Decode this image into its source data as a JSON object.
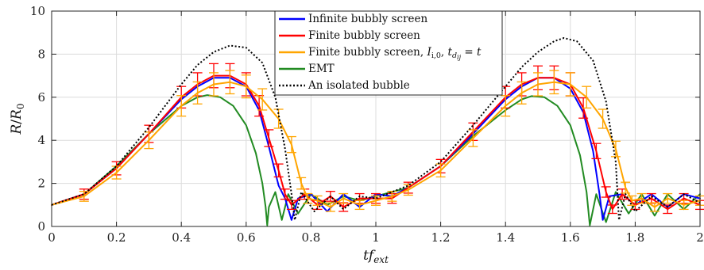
{
  "chart_data": {
    "type": "line",
    "xlabel": "tf_ext",
    "ylabel": "R/R0",
    "xlim": [
      0,
      2
    ],
    "ylim": [
      0,
      10
    ],
    "xticks": [
      0,
      0.2,
      0.4,
      0.6,
      0.8,
      1,
      1.2,
      1.4,
      1.6,
      1.8,
      2
    ],
    "xtick_labels": [
      "0",
      "0.2",
      "0.4",
      "0.6",
      "0.8",
      "1",
      "1.2",
      "1.4",
      "1.6",
      "1.8",
      "2"
    ],
    "yticks": [
      0,
      2,
      4,
      6,
      8,
      10
    ],
    "ytick_labels": [
      "0",
      "2",
      "4",
      "6",
      "8",
      "10"
    ],
    "grid": true,
    "legend_position": "top-center",
    "series": [
      {
        "name": "Infinite bubbly screen",
        "color": "#0000ff",
        "style": "solid",
        "points": [
          [
            0,
            1
          ],
          [
            0.1,
            1.5
          ],
          [
            0.2,
            2.7
          ],
          [
            0.3,
            4.3
          ],
          [
            0.4,
            5.9
          ],
          [
            0.45,
            6.5
          ],
          [
            0.5,
            6.9
          ],
          [
            0.55,
            6.9
          ],
          [
            0.6,
            6.5
          ],
          [
            0.64,
            5.4
          ],
          [
            0.67,
            3.7
          ],
          [
            0.7,
            1.9
          ],
          [
            0.72,
            1.3
          ],
          [
            0.74,
            0.3
          ],
          [
            0.76,
            1.3
          ],
          [
            0.8,
            1.5
          ],
          [
            0.85,
            0.7
          ],
          [
            0.9,
            1.5
          ],
          [
            0.95,
            0.9
          ],
          [
            1.0,
            1.5
          ],
          [
            1.05,
            1.4
          ],
          [
            1.1,
            1.8
          ],
          [
            1.2,
            2.8
          ],
          [
            1.3,
            4.3
          ],
          [
            1.4,
            5.9
          ],
          [
            1.45,
            6.5
          ],
          [
            1.5,
            6.9
          ],
          [
            1.55,
            6.9
          ],
          [
            1.6,
            6.4
          ],
          [
            1.64,
            5.3
          ],
          [
            1.67,
            3.5
          ],
          [
            1.69,
            1.5
          ],
          [
            1.7,
            0.3
          ],
          [
            1.72,
            1.4
          ],
          [
            1.76,
            1.5
          ],
          [
            1.8,
            1.0
          ],
          [
            1.85,
            1.5
          ],
          [
            1.9,
            0.9
          ],
          [
            1.95,
            1.5
          ],
          [
            2.0,
            1.3
          ]
        ]
      },
      {
        "name": "Finite bubbly screen",
        "color": "#ff0000",
        "style": "solid-errorbars",
        "points": [
          [
            0,
            1
          ],
          [
            0.1,
            1.5
          ],
          [
            0.2,
            2.7
          ],
          [
            0.3,
            4.3
          ],
          [
            0.4,
            6.0
          ],
          [
            0.45,
            6.6
          ],
          [
            0.5,
            7.0
          ],
          [
            0.55,
            7.0
          ],
          [
            0.6,
            6.6
          ],
          [
            0.64,
            5.6
          ],
          [
            0.67,
            4.1
          ],
          [
            0.7,
            2.6
          ],
          [
            0.72,
            1.5
          ],
          [
            0.74,
            1.0
          ],
          [
            0.78,
            1.5
          ],
          [
            0.82,
            1.0
          ],
          [
            0.86,
            1.4
          ],
          [
            0.9,
            0.9
          ],
          [
            0.95,
            1.3
          ],
          [
            1.0,
            1.3
          ],
          [
            1.05,
            1.3
          ],
          [
            1.1,
            1.8
          ],
          [
            1.2,
            2.8
          ],
          [
            1.3,
            4.4
          ],
          [
            1.4,
            6.0
          ],
          [
            1.45,
            6.6
          ],
          [
            1.5,
            6.9
          ],
          [
            1.55,
            6.9
          ],
          [
            1.6,
            6.6
          ],
          [
            1.64,
            5.5
          ],
          [
            1.68,
            3.5
          ],
          [
            1.71,
            1.6
          ],
          [
            1.73,
            0.8
          ],
          [
            1.76,
            1.5
          ],
          [
            1.8,
            1.0
          ],
          [
            1.85,
            1.3
          ],
          [
            1.9,
            0.8
          ],
          [
            1.95,
            1.3
          ],
          [
            2.0,
            1.0
          ]
        ]
      },
      {
        "name": "Finite bubbly screen, I_{i,0}, t_{d_ij} = t",
        "color": "#ffa500",
        "style": "solid-errorbars",
        "points": [
          [
            0,
            1
          ],
          [
            0.1,
            1.4
          ],
          [
            0.2,
            2.5
          ],
          [
            0.3,
            4.0
          ],
          [
            0.4,
            5.6
          ],
          [
            0.45,
            6.2
          ],
          [
            0.5,
            6.6
          ],
          [
            0.55,
            6.7
          ],
          [
            0.6,
            6.5
          ],
          [
            0.65,
            5.9
          ],
          [
            0.7,
            5.0
          ],
          [
            0.74,
            3.8
          ],
          [
            0.77,
            2.0
          ],
          [
            0.79,
            1.3
          ],
          [
            0.82,
            1.2
          ],
          [
            0.86,
            0.9
          ],
          [
            0.9,
            1.3
          ],
          [
            0.95,
            1.0
          ],
          [
            1.0,
            1.2
          ],
          [
            1.05,
            1.4
          ],
          [
            1.1,
            1.7
          ],
          [
            1.2,
            2.6
          ],
          [
            1.3,
            4.1
          ],
          [
            1.4,
            5.6
          ],
          [
            1.45,
            6.2
          ],
          [
            1.5,
            6.6
          ],
          [
            1.55,
            6.7
          ],
          [
            1.6,
            6.6
          ],
          [
            1.65,
            6.0
          ],
          [
            1.7,
            5.0
          ],
          [
            1.74,
            3.6
          ],
          [
            1.77,
            1.8
          ],
          [
            1.79,
            1.2
          ],
          [
            1.82,
            1.3
          ],
          [
            1.86,
            0.9
          ],
          [
            1.9,
            1.3
          ],
          [
            1.95,
            1.0
          ],
          [
            2.0,
            1.2
          ]
        ]
      },
      {
        "name": "EMT",
        "color": "#228b22",
        "style": "solid",
        "points": [
          [
            0,
            1
          ],
          [
            0.1,
            1.5
          ],
          [
            0.2,
            2.8
          ],
          [
            0.3,
            4.3
          ],
          [
            0.4,
            5.6
          ],
          [
            0.45,
            6.0
          ],
          [
            0.48,
            6.1
          ],
          [
            0.52,
            6.0
          ],
          [
            0.56,
            5.6
          ],
          [
            0.6,
            4.7
          ],
          [
            0.63,
            3.4
          ],
          [
            0.65,
            2.0
          ],
          [
            0.66,
            0.9
          ],
          [
            0.665,
            0.05
          ],
          [
            0.67,
            0.9
          ],
          [
            0.69,
            1.6
          ],
          [
            0.71,
            0.3
          ],
          [
            0.73,
            1.5
          ],
          [
            0.76,
            0.6
          ],
          [
            0.8,
            1.5
          ],
          [
            0.85,
            1.0
          ],
          [
            0.9,
            1.4
          ],
          [
            0.95,
            1.2
          ],
          [
            1.0,
            1.4
          ],
          [
            1.1,
            1.8
          ],
          [
            1.2,
            2.8
          ],
          [
            1.3,
            4.2
          ],
          [
            1.4,
            5.4
          ],
          [
            1.45,
            5.9
          ],
          [
            1.48,
            6.05
          ],
          [
            1.52,
            6.0
          ],
          [
            1.56,
            5.6
          ],
          [
            1.6,
            4.7
          ],
          [
            1.63,
            3.3
          ],
          [
            1.65,
            1.6
          ],
          [
            1.66,
            0.05
          ],
          [
            1.68,
            1.5
          ],
          [
            1.71,
            0.2
          ],
          [
            1.74,
            1.6
          ],
          [
            1.78,
            0.6
          ],
          [
            1.82,
            1.5
          ],
          [
            1.86,
            0.5
          ],
          [
            1.9,
            1.5
          ],
          [
            1.95,
            0.8
          ],
          [
            2.0,
            1.5
          ]
        ]
      },
      {
        "name": "An isolated bubble",
        "color": "#000000",
        "style": "dotted",
        "points": [
          [
            0,
            1
          ],
          [
            0.1,
            1.5
          ],
          [
            0.2,
            2.8
          ],
          [
            0.3,
            4.6
          ],
          [
            0.4,
            6.6
          ],
          [
            0.45,
            7.5
          ],
          [
            0.5,
            8.1
          ],
          [
            0.55,
            8.4
          ],
          [
            0.6,
            8.3
          ],
          [
            0.65,
            7.6
          ],
          [
            0.69,
            6.0
          ],
          [
            0.72,
            3.6
          ],
          [
            0.74,
            1.5
          ],
          [
            0.75,
            0.3
          ],
          [
            0.77,
            1.6
          ],
          [
            0.81,
            0.7
          ],
          [
            0.86,
            1.4
          ],
          [
            0.9,
            0.8
          ],
          [
            0.95,
            1.4
          ],
          [
            1.0,
            1.3
          ],
          [
            1.1,
            1.9
          ],
          [
            1.2,
            3.0
          ],
          [
            1.3,
            4.7
          ],
          [
            1.4,
            6.5
          ],
          [
            1.45,
            7.4
          ],
          [
            1.5,
            8.1
          ],
          [
            1.55,
            8.6
          ],
          [
            1.58,
            8.75
          ],
          [
            1.62,
            8.6
          ],
          [
            1.67,
            7.7
          ],
          [
            1.71,
            5.8
          ],
          [
            1.74,
            3.0
          ],
          [
            1.75,
            0.3
          ],
          [
            1.77,
            1.5
          ],
          [
            1.8,
            0.7
          ],
          [
            1.85,
            1.4
          ],
          [
            1.9,
            0.9
          ],
          [
            1.95,
            1.5
          ],
          [
            2.0,
            1.1
          ]
        ]
      }
    ]
  }
}
